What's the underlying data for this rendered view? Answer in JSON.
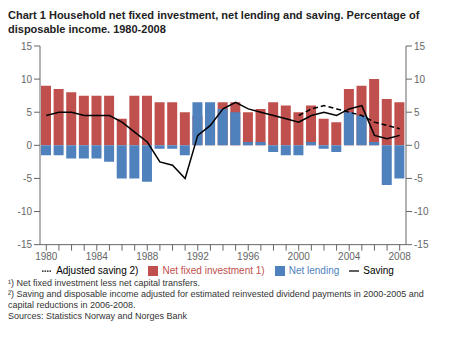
{
  "chart_data": {
    "type": "bar",
    "title": "Chart 1 Household net fixed investment, net lending and saving. Percentage of disposable income. 1980-2008",
    "categories": [
      "1980",
      null,
      null,
      null,
      "1984",
      null,
      null,
      null,
      "1988",
      null,
      null,
      null,
      "1992",
      null,
      null,
      null,
      "1996",
      null,
      null,
      null,
      "2000",
      null,
      null,
      null,
      "2004",
      null,
      null,
      null,
      "2008"
    ],
    "series": [
      {
        "name": "Net fixed investment 1)",
        "type": "bar",
        "color": "#C0504D",
        "values": [
          9.0,
          8.5,
          8.0,
          7.5,
          7.5,
          7.5,
          4.0,
          7.5,
          7.5,
          6.5,
          6.5,
          5.0,
          4.5,
          5.5,
          6.5,
          6.5,
          5.0,
          5.5,
          6.5,
          6.0,
          5.0,
          6.0,
          4.0,
          3.5,
          8.5,
          9.0,
          10.0,
          7.0,
          6.5
        ]
      },
      {
        "name": "Net lending",
        "type": "bar",
        "color": "#4F81BD",
        "values": [
          -1.5,
          -1.5,
          -2.0,
          -2.0,
          -2.0,
          -2.5,
          -5.0,
          -5.0,
          -5.5,
          -0.5,
          -0.5,
          -1.5,
          6.5,
          6.5,
          5.5,
          5.0,
          0.5,
          0.5,
          -1.0,
          -1.5,
          -1.5,
          0.5,
          -0.5,
          -1.0,
          5.0,
          4.5,
          0.5,
          -6.0,
          -5.0
        ]
      },
      {
        "name": "Saving",
        "type": "line",
        "color": "#000000",
        "line_style": "solid",
        "values": [
          4.5,
          5.0,
          5.0,
          4.5,
          4.5,
          4.5,
          3.5,
          2.0,
          0.5,
          -2.5,
          -3.0,
          -5.0,
          1.5,
          3.0,
          5.5,
          6.5,
          5.5,
          5.0,
          4.5,
          4.0,
          3.5,
          4.5,
          5.0,
          4.5,
          5.5,
          6.0,
          1.5,
          1.0,
          1.5
        ]
      },
      {
        "name": "Adjusted saving 2)",
        "type": "line",
        "color": "#000000",
        "line_style": "dashed",
        "values": [
          null,
          null,
          null,
          null,
          null,
          null,
          null,
          null,
          null,
          null,
          null,
          null,
          null,
          null,
          null,
          null,
          null,
          null,
          null,
          null,
          4.5,
          5.5,
          6.0,
          5.5,
          5.0,
          4.5,
          3.5,
          3.0,
          2.5
        ]
      }
    ],
    "ylim": [
      -15,
      15
    ],
    "yticks": [
      -15,
      -10,
      -5,
      0,
      5,
      10,
      15
    ],
    "y2lim": [
      -15,
      15
    ],
    "y2ticks": [
      -15,
      -10,
      -5,
      0,
      5,
      10,
      15
    ],
    "grid": false,
    "legend": "bottom",
    "annotations": [
      "¹) Net fixed investment less net capital transfers.",
      "²) Saving and disposable income adjusted for estimated reinvested dividend payments in 2000-2005 and capital reductions in 2006-2008.",
      "Sources: Statistics Norway and Norges Bank"
    ]
  }
}
